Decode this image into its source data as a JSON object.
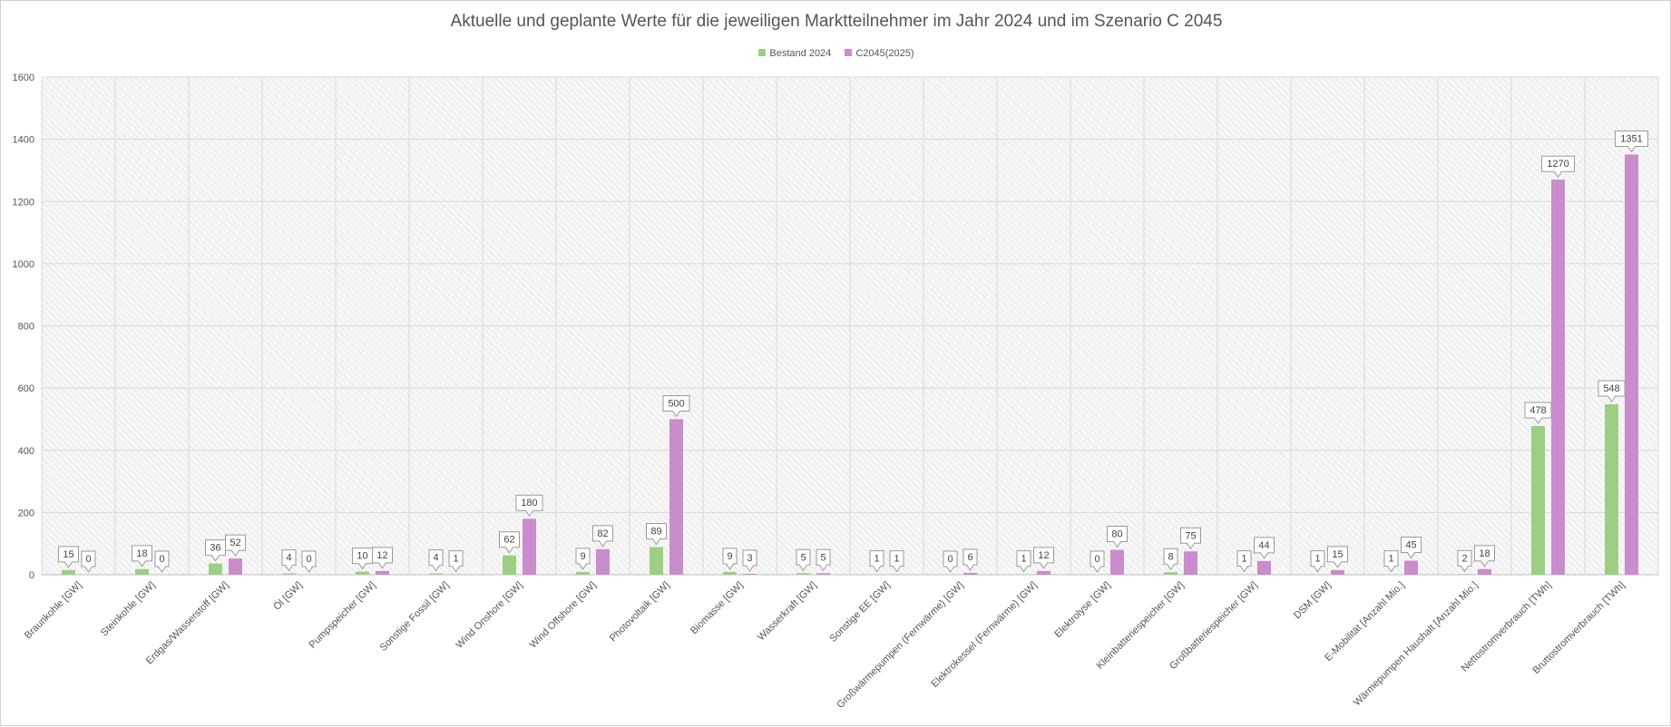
{
  "chart_data": {
    "type": "bar",
    "title": "Aktuelle und geplante Werte für die jeweiligen Marktteilnehmer im Jahr 2024 und im Szenario C 2045",
    "xlabel": "",
    "ylabel": "",
    "ylim": [
      0,
      1600
    ],
    "yticks": [
      0,
      200,
      400,
      600,
      800,
      1000,
      1200,
      1400,
      1600
    ],
    "grid": true,
    "legend_position": "top-center",
    "categories": [
      "Braunkohle [GW]",
      "Steinkohle [GW]",
      "Erdgas/Wasserstoff [GW]",
      "Öl [GW]",
      "Pumpspeicher [GW]",
      "Sonstige Fossil [GW]",
      "Wind Onshore [GW]",
      "Wind Offshore [GW]",
      "Photovoltaik [GW]",
      "Biomasse [GW]",
      "Wasserkraft [GW]",
      "Sonstige EE [GW]",
      "Großwärmepumpen (Fernwärme) [GW]",
      "Elektrokessel (Fernwärme) [GW]",
      "Elektrolyse [GW]",
      "Kleinbatteriespeicher [GW]",
      "Großbatteriespeicher [GW]",
      "DSM [GW]",
      "E-Mobilität [Anzahl Mio.]",
      "Wärmepumpen Haushalt [Anzahl Mio.]",
      "Nettostromverbrauch [TWh]",
      "Bruttostromverbrauch [TWh]"
    ],
    "series": [
      {
        "name": "Bestand 2024",
        "color": "#9ccf84",
        "values": [
          15,
          18,
          36,
          4,
          10,
          4,
          62,
          9,
          89,
          9,
          5,
          1,
          0,
          1,
          0,
          8,
          1,
          1,
          1,
          2,
          478,
          548
        ]
      },
      {
        "name": "C2045(2025)",
        "color": "#c98ccc",
        "values": [
          0,
          0,
          52,
          0,
          12,
          1,
          180,
          82,
          500,
          3,
          5,
          1,
          6,
          12,
          80,
          75,
          44,
          15,
          45,
          18,
          1270,
          1351
        ]
      }
    ]
  }
}
